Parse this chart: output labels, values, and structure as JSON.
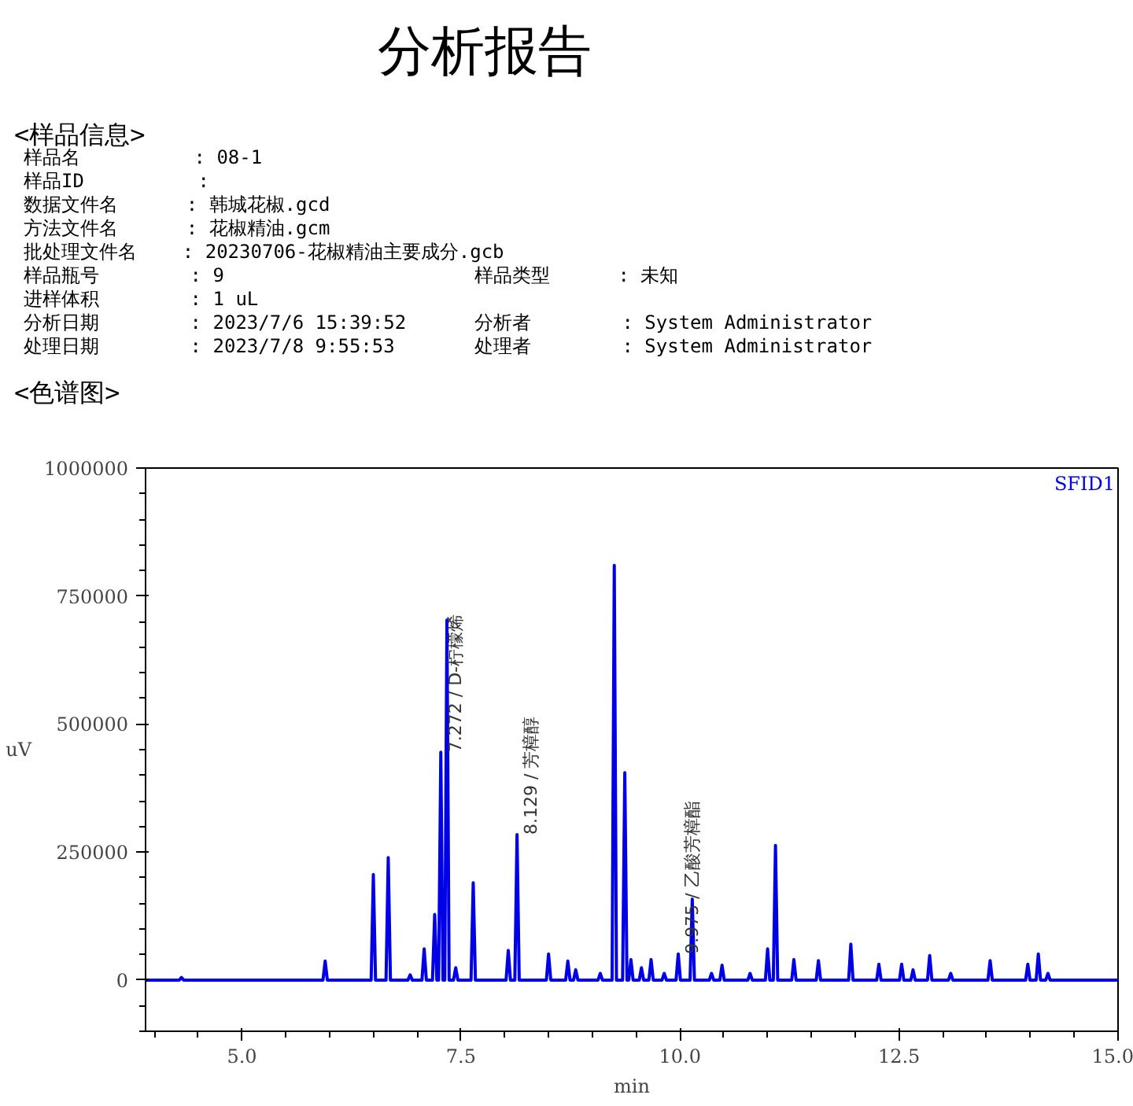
{
  "chart_data": {
    "type": "line",
    "title": "分析报告",
    "annotations": [
      "<样品信息>",
      "样品名          : 08-1",
      "样品ID          :",
      "数据文件名      : 韩城花椒.gcd",
      "方法文件名      : 花椒精油.gcm",
      "批处理文件名    : 20230706-花椒精油主要成分.gcb",
      "样品瓶号        : 9                      样品类型      : 未知",
      "进样体积        : 1 uL",
      "分析日期        : 2023/7/6 15:39:52      分析者        : System Administrator",
      "处理日期        : 2023/7/8 9:55:53       处理者        : System Administrator",
      "<色谱图>",
      {
        "text": "7.272 / D-柠檬烯",
        "x": 7.272,
        "y": 445000
      },
      {
        "text": "8.129 / 芳樟醇",
        "x": 8.129,
        "y": 284000
      },
      {
        "text": "9.975 / 乙酸芳樟酯",
        "x": 9.975,
        "y": 51000
      }
    ],
    "xlabel": "min",
    "ylabel": "uV",
    "xlim": [
      3.9,
      15.0
    ],
    "ylim": [
      -100000,
      1000000
    ],
    "xticks": [
      {
        "value": 5,
        "label": "5.0"
      },
      {
        "value": 7.5,
        "label": "7.5"
      },
      {
        "value": 10,
        "label": "10.0"
      },
      {
        "value": 12.5,
        "label": "12.5"
      },
      {
        "value": 15,
        "label": "15.0"
      }
    ],
    "yticks": [
      0,
      250000,
      500000,
      750000,
      1000000
    ],
    "grid": false,
    "marker": "none",
    "line_style": "solid",
    "series": [
      {
        "name": "SFID1",
        "color": "#0000e6",
        "x": [
          3.9,
          4.285,
          4.31,
          4.335,
          5.925,
          5.95,
          5.975,
          6.475,
          6.5,
          6.525,
          6.645,
          6.67,
          6.695,
          6.895,
          6.92,
          6.945,
          7.055,
          7.08,
          7.105,
          7.175,
          7.2,
          7.225,
          7.245,
          7.27,
          7.295,
          7.315,
          7.34,
          7.365,
          7.415,
          7.44,
          7.465,
          7.615,
          7.64,
          7.665,
          8.015,
          8.04,
          8.065,
          8.115,
          8.14,
          8.165,
          8.475,
          8.5,
          8.525,
          8.695,
          8.72,
          8.745,
          8.785,
          8.81,
          8.835,
          9.065,
          9.09,
          9.115,
          9.225,
          9.25,
          9.275,
          9.345,
          9.37,
          9.395,
          9.415,
          9.44,
          9.465,
          9.535,
          9.56,
          9.585,
          9.645,
          9.67,
          9.695,
          9.795,
          9.82,
          9.845,
          9.955,
          9.98,
          10.005,
          10.115,
          10.14,
          10.165,
          10.335,
          10.36,
          10.385,
          10.455,
          10.48,
          10.505,
          10.775,
          10.8,
          10.825,
          10.975,
          11.0,
          11.025,
          11.065,
          11.09,
          11.115,
          11.275,
          11.3,
          11.325,
          11.555,
          11.58,
          11.605,
          11.925,
          11.95,
          11.975,
          12.245,
          12.27,
          12.295,
          12.505,
          12.53,
          12.555,
          12.635,
          12.66,
          12.685,
          12.825,
          12.85,
          12.875,
          13.065,
          13.09,
          13.115,
          13.515,
          13.54,
          13.565,
          13.945,
          13.97,
          13.995,
          14.065,
          14.09,
          14.115,
          14.175,
          14.2,
          14.225,
          15.0
        ],
        "values": [
          0,
          0,
          5000,
          0,
          0,
          37000,
          0,
          0,
          206000,
          0,
          0,
          239000,
          0,
          0,
          10000,
          0,
          0,
          61000,
          0,
          0,
          128000,
          0,
          0,
          445000,
          0,
          0,
          703000,
          0,
          0,
          24000,
          0,
          0,
          190000,
          0,
          0,
          58000,
          0,
          0,
          284000,
          0,
          0,
          51000,
          0,
          0,
          37000,
          0,
          0,
          20000,
          0,
          0,
          13000,
          0,
          0,
          810000,
          0,
          0,
          405000,
          0,
          0,
          40000,
          0,
          0,
          24000,
          0,
          0,
          40000,
          0,
          0,
          13000,
          0,
          0,
          51000,
          0,
          0,
          158000,
          0,
          0,
          13000,
          0,
          0,
          29000,
          0,
          0,
          13000,
          0,
          0,
          61000,
          0,
          0,
          263000,
          0,
          0,
          40000,
          0,
          0,
          38000,
          0,
          0,
          70000,
          0,
          0,
          31000,
          0,
          0,
          31000,
          0,
          0,
          20000,
          0,
          0,
          48000,
          0,
          0,
          13000,
          0,
          0,
          38000,
          0,
          0,
          31000,
          0,
          0,
          51000,
          0,
          0,
          13000,
          0,
          0
        ]
      }
    ]
  }
}
